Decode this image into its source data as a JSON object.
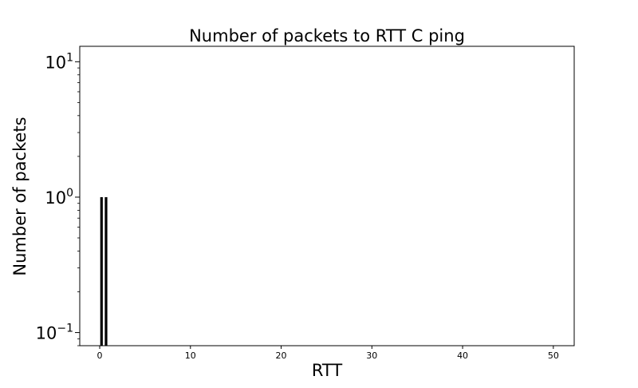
{
  "chart_data": {
    "type": "bar",
    "title": "Number of packets to RTT C ping",
    "xlabel": "RTT",
    "ylabel": "Number of packets",
    "yscale": "log",
    "xlim": [
      -2.2,
      52.3
    ],
    "ylim": [
      0.08,
      13
    ],
    "x_ticks": [
      0,
      10,
      20,
      30,
      40,
      50
    ],
    "y_ticks": [
      {
        "value": 0.1,
        "base": "10",
        "exp": "−1"
      },
      {
        "value": 1,
        "base": "10",
        "exp": "0"
      },
      {
        "value": 10,
        "base": "10",
        "exp": "1"
      }
    ],
    "bars": [
      {
        "x": 0.2,
        "value": 1
      },
      {
        "x": 0.7,
        "value": 1
      }
    ],
    "bar_color": "#000000",
    "grid": false,
    "legend": "none"
  }
}
